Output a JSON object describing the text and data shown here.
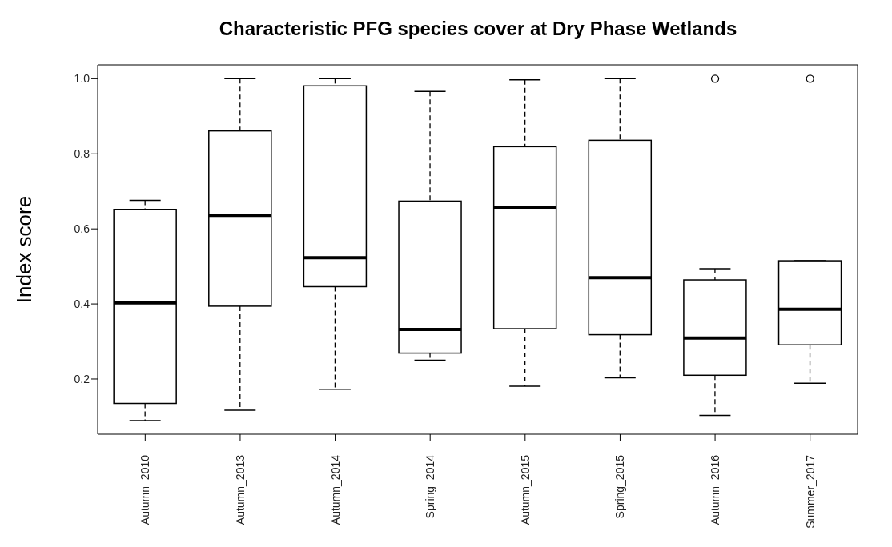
{
  "chart_data": {
    "type": "box",
    "title": "Characteristic PFG species cover at Dry Phase Wetlands",
    "ylabel": "Index score",
    "categories": [
      "Autumn_2010",
      "Autumn_2013",
      "Autumn_2014",
      "Spring_2014",
      "Autumn_2015",
      "Spring_2015",
      "Autumn_2016",
      "Summer_2017"
    ],
    "boxes": [
      {
        "low": 0.089,
        "q1": 0.135,
        "median": 0.403,
        "q3": 0.652,
        "high": 0.676
      },
      {
        "low": 0.117,
        "q1": 0.394,
        "median": 0.636,
        "q3": 0.861,
        "high": 1.0
      },
      {
        "low": 0.173,
        "q1": 0.446,
        "median": 0.523,
        "q3": 0.981,
        "high": 1.0
      },
      {
        "low": 0.25,
        "q1": 0.269,
        "median": 0.332,
        "q3": 0.674,
        "high": 0.966
      },
      {
        "low": 0.181,
        "q1": 0.334,
        "median": 0.658,
        "q3": 0.819,
        "high": 0.997
      },
      {
        "low": 0.203,
        "q1": 0.318,
        "median": 0.47,
        "q3": 0.836,
        "high": 1.0
      },
      {
        "low": 0.103,
        "q1": 0.21,
        "median": 0.309,
        "q3": 0.464,
        "high": 0.494,
        "outliers": [
          1.0
        ]
      },
      {
        "low": 0.189,
        "q1": 0.291,
        "median": 0.386,
        "q3": 0.515,
        "high": 0.515,
        "outliers": [
          1.0
        ]
      }
    ],
    "ylim": [
      0.053,
      1.037
    ],
    "yticks": [
      {
        "value": 0.2,
        "label": "0.2"
      },
      {
        "value": 0.4,
        "label": "0.4"
      },
      {
        "value": 0.6,
        "label": "0.6"
      },
      {
        "value": 0.8,
        "label": "0.8"
      },
      {
        "value": 1,
        "label": "1.0"
      }
    ],
    "grid": false,
    "legend": false
  }
}
